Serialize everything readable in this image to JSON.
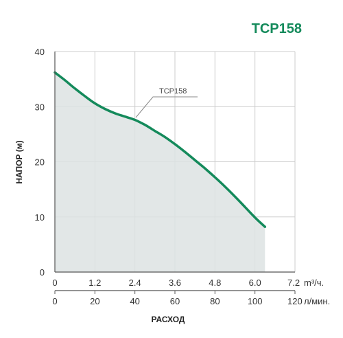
{
  "chart_data": {
    "type": "area",
    "title": "TCP158",
    "ylabel": "НАПОР (м)",
    "xlabel": "РАСХОД",
    "ylim": [
      0,
      40
    ],
    "yticks": [
      "0",
      "10",
      "20",
      "30",
      "40"
    ],
    "x_axis_primary": {
      "ticks": [
        "0",
        "1.2",
        "2.4",
        "3.6",
        "4.8",
        "6.0",
        "7.2"
      ],
      "unit": "m³/ч."
    },
    "x_axis_secondary": {
      "ticks": [
        "0",
        "20",
        "40",
        "60",
        "80",
        "100",
        "120"
      ],
      "unit": "л/мин."
    },
    "xlim_lpm": [
      0,
      120
    ],
    "series": [
      {
        "name": "TCP158",
        "x_lpm": [
          0,
          5,
          10,
          15,
          20,
          25,
          30,
          35,
          40,
          45,
          50,
          55,
          60,
          65,
          70,
          75,
          80,
          85,
          90,
          95,
          100,
          105
        ],
        "y_m": [
          36.2,
          34.8,
          33.3,
          31.9,
          30.6,
          29.6,
          28.8,
          28.2,
          27.6,
          26.7,
          25.6,
          24.5,
          23.2,
          21.8,
          20.3,
          18.8,
          17.2,
          15.5,
          13.7,
          11.8,
          9.9,
          8.2
        ]
      }
    ],
    "annotation": "TCP158",
    "grid": true,
    "colors": {
      "line": "#148a5b",
      "fill": "#dde3e3",
      "grid": "#cccccc",
      "axis": "#555555",
      "title": "#148a5b"
    }
  }
}
